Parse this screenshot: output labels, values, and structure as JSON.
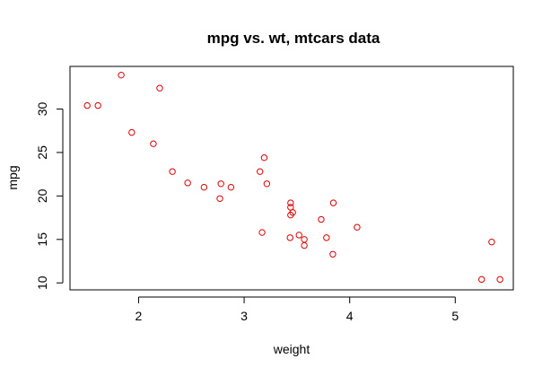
{
  "chart_data": {
    "type": "scatter",
    "title": "mpg vs. wt, mtcars data",
    "xlabel": "weight",
    "ylabel": "mpg",
    "xlim": [
      1.35,
      5.55
    ],
    "ylim": [
      9.2,
      34.9
    ],
    "xticks": [
      2,
      3,
      4,
      5
    ],
    "yticks": [
      10,
      15,
      20,
      25,
      30
    ],
    "grid": false,
    "marker_color": "#dd0000",
    "points": [
      {
        "x": 2.62,
        "y": 21.0
      },
      {
        "x": 2.875,
        "y": 21.0
      },
      {
        "x": 2.32,
        "y": 22.8
      },
      {
        "x": 3.215,
        "y": 21.4
      },
      {
        "x": 3.44,
        "y": 18.7
      },
      {
        "x": 3.46,
        "y": 18.1
      },
      {
        "x": 3.57,
        "y": 14.3
      },
      {
        "x": 3.19,
        "y": 24.4
      },
      {
        "x": 3.15,
        "y": 22.8
      },
      {
        "x": 3.44,
        "y": 19.2
      },
      {
        "x": 3.44,
        "y": 17.8
      },
      {
        "x": 4.07,
        "y": 16.4
      },
      {
        "x": 3.73,
        "y": 17.3
      },
      {
        "x": 3.78,
        "y": 15.2
      },
      {
        "x": 5.25,
        "y": 10.4
      },
      {
        "x": 5.424,
        "y": 10.4
      },
      {
        "x": 5.345,
        "y": 14.7
      },
      {
        "x": 2.2,
        "y": 32.4
      },
      {
        "x": 1.615,
        "y": 30.4
      },
      {
        "x": 1.835,
        "y": 33.9
      },
      {
        "x": 2.465,
        "y": 21.5
      },
      {
        "x": 3.52,
        "y": 15.5
      },
      {
        "x": 3.435,
        "y": 15.2
      },
      {
        "x": 3.84,
        "y": 13.3
      },
      {
        "x": 3.845,
        "y": 19.2
      },
      {
        "x": 1.935,
        "y": 27.3
      },
      {
        "x": 2.14,
        "y": 26.0
      },
      {
        "x": 1.513,
        "y": 30.4
      },
      {
        "x": 3.17,
        "y": 15.8
      },
      {
        "x": 2.77,
        "y": 19.7
      },
      {
        "x": 3.57,
        "y": 15.0
      },
      {
        "x": 2.78,
        "y": 21.4
      }
    ]
  }
}
